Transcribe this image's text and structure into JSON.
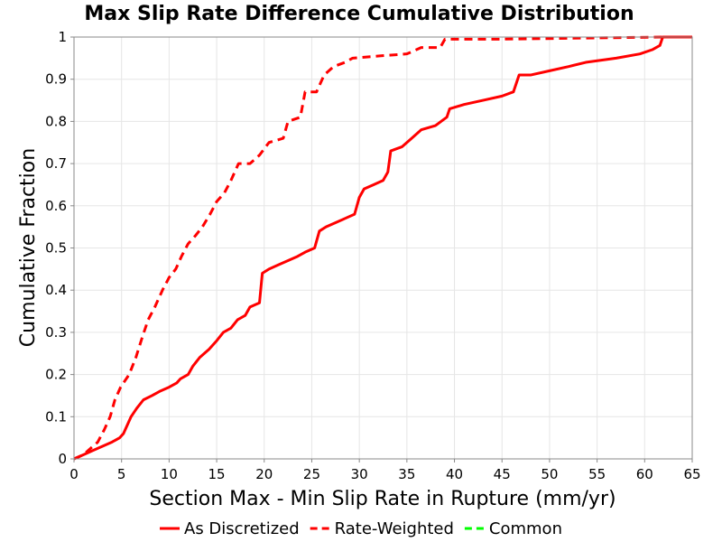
{
  "chart_data": {
    "type": "line",
    "title": "Max Slip Rate Difference Cumulative Distribution",
    "xlabel": "Section Max - Min Slip Rate in Rupture (mm/yr)",
    "ylabel": "Cumulative Fraction",
    "xlim": [
      0,
      65
    ],
    "ylim": [
      0,
      1
    ],
    "x_ticks": [
      "0",
      "5",
      "10",
      "15",
      "20",
      "25",
      "30",
      "35",
      "40",
      "45",
      "50",
      "55",
      "60",
      "65"
    ],
    "y_ticks": [
      "0",
      "0.1",
      "0.2",
      "0.3",
      "0.4",
      "0.5",
      "0.6",
      "0.7",
      "0.8",
      "0.9",
      "1"
    ],
    "grid": true,
    "legend_position": "bottom",
    "series": [
      {
        "name": "As Discretized",
        "color": "#ff0000",
        "dash": "solid",
        "points": [
          [
            0,
            0
          ],
          [
            1,
            0.01
          ],
          [
            2,
            0.02
          ],
          [
            3,
            0.03
          ],
          [
            4,
            0.04
          ],
          [
            4.8,
            0.05
          ],
          [
            5.2,
            0.06
          ],
          [
            5.6,
            0.08
          ],
          [
            6,
            0.1
          ],
          [
            6.6,
            0.12
          ],
          [
            7.3,
            0.14
          ],
          [
            8.2,
            0.15
          ],
          [
            9,
            0.16
          ],
          [
            10,
            0.17
          ],
          [
            10.8,
            0.18
          ],
          [
            11.2,
            0.19
          ],
          [
            12,
            0.2
          ],
          [
            12.5,
            0.22
          ],
          [
            13.2,
            0.24
          ],
          [
            14.2,
            0.26
          ],
          [
            15,
            0.28
          ],
          [
            15.7,
            0.3
          ],
          [
            16.5,
            0.31
          ],
          [
            17.2,
            0.33
          ],
          [
            18,
            0.34
          ],
          [
            18.5,
            0.36
          ],
          [
            19.5,
            0.37
          ],
          [
            19.8,
            0.44
          ],
          [
            20.5,
            0.45
          ],
          [
            21.5,
            0.46
          ],
          [
            22.5,
            0.47
          ],
          [
            23.5,
            0.48
          ],
          [
            24.3,
            0.49
          ],
          [
            25.3,
            0.5
          ],
          [
            25.8,
            0.54
          ],
          [
            26.5,
            0.55
          ],
          [
            27.5,
            0.56
          ],
          [
            28.5,
            0.57
          ],
          [
            29.5,
            0.58
          ],
          [
            30,
            0.62
          ],
          [
            30.5,
            0.64
          ],
          [
            31.5,
            0.65
          ],
          [
            32.5,
            0.66
          ],
          [
            33,
            0.68
          ],
          [
            33.3,
            0.73
          ],
          [
            34.5,
            0.74
          ],
          [
            35.5,
            0.76
          ],
          [
            36.5,
            0.78
          ],
          [
            38,
            0.79
          ],
          [
            39.2,
            0.81
          ],
          [
            39.5,
            0.83
          ],
          [
            41,
            0.84
          ],
          [
            43,
            0.85
          ],
          [
            45,
            0.86
          ],
          [
            46.2,
            0.87
          ],
          [
            46.8,
            0.91
          ],
          [
            48,
            0.91
          ],
          [
            50,
            0.92
          ],
          [
            52,
            0.93
          ],
          [
            53.8,
            0.94
          ],
          [
            57,
            0.95
          ],
          [
            59.5,
            0.96
          ],
          [
            60.8,
            0.97
          ],
          [
            61.6,
            0.98
          ],
          [
            61.9,
            1
          ],
          [
            65,
            1
          ]
        ]
      },
      {
        "name": "Rate-Weighted",
        "color": "#ff0000",
        "dash": "dashed",
        "points": [
          [
            0,
            0
          ],
          [
            1,
            0.01
          ],
          [
            1.5,
            0.02
          ],
          [
            2.5,
            0.04
          ],
          [
            3.2,
            0.07
          ],
          [
            3.8,
            0.1
          ],
          [
            4.3,
            0.14
          ],
          [
            4.9,
            0.17
          ],
          [
            5.8,
            0.2
          ],
          [
            6.5,
            0.24
          ],
          [
            7.2,
            0.29
          ],
          [
            7.8,
            0.33
          ],
          [
            8.5,
            0.36
          ],
          [
            9.3,
            0.4
          ],
          [
            10,
            0.43
          ],
          [
            10.7,
            0.45
          ],
          [
            11.3,
            0.48
          ],
          [
            12,
            0.51
          ],
          [
            12.8,
            0.53
          ],
          [
            13.5,
            0.55
          ],
          [
            14.3,
            0.58
          ],
          [
            15,
            0.61
          ],
          [
            15.8,
            0.63
          ],
          [
            16.5,
            0.66
          ],
          [
            17.3,
            0.7
          ],
          [
            18.5,
            0.7
          ],
          [
            19.5,
            0.72
          ],
          [
            20.5,
            0.75
          ],
          [
            22,
            0.76
          ],
          [
            22.5,
            0.8
          ],
          [
            23.8,
            0.81
          ],
          [
            24.3,
            0.87
          ],
          [
            25.5,
            0.87
          ],
          [
            26.3,
            0.91
          ],
          [
            27.3,
            0.93
          ],
          [
            28.5,
            0.94
          ],
          [
            29.3,
            0.95
          ],
          [
            32,
            0.955
          ],
          [
            35,
            0.96
          ],
          [
            36.5,
            0.975
          ],
          [
            38.5,
            0.975
          ],
          [
            39,
            0.995
          ],
          [
            45,
            0.995
          ],
          [
            55,
            0.998
          ],
          [
            62,
            1
          ],
          [
            65,
            1
          ]
        ]
      },
      {
        "name": "Common",
        "color": "#00ff00",
        "dash": "dashed",
        "points": []
      }
    ]
  }
}
